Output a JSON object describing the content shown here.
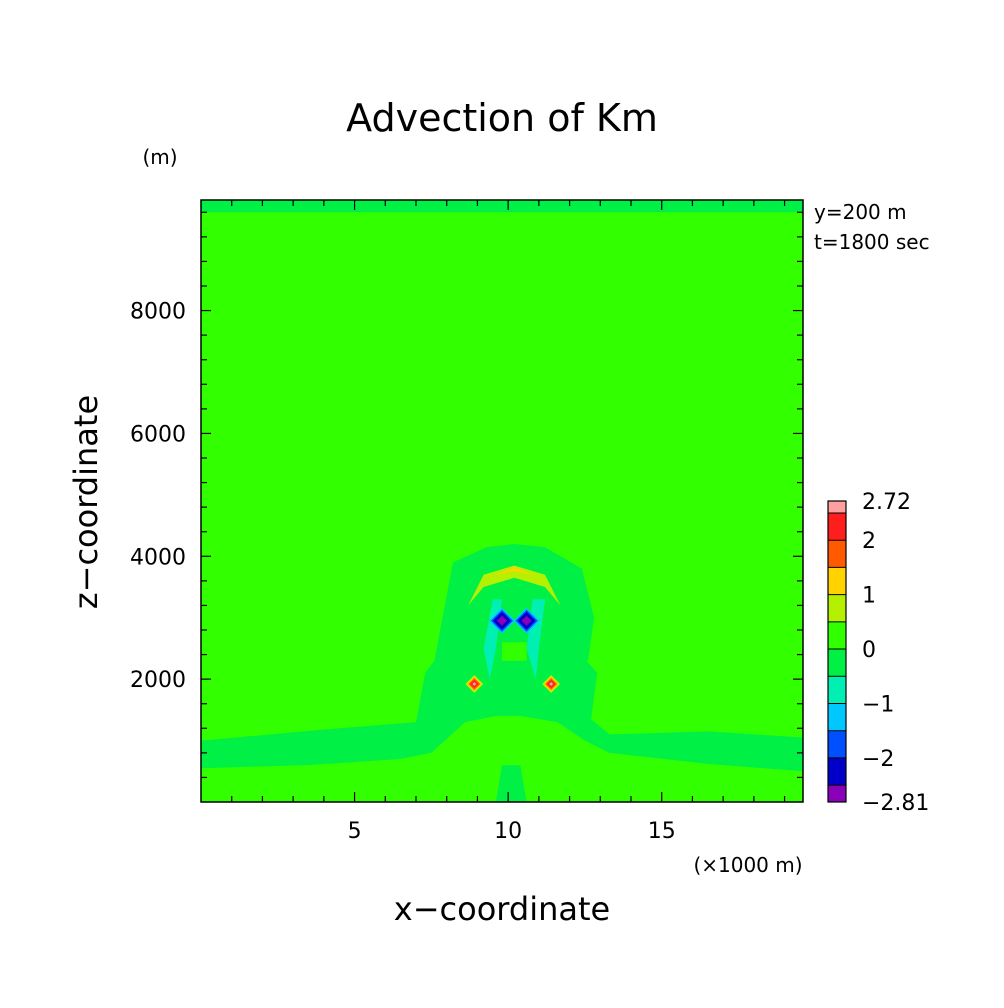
{
  "chart_data": {
    "type": "heatmap",
    "title": "Advection of Km",
    "xlabel": "x−coordinate",
    "ylabel": "z−coordinate",
    "x_unit": "(×1000 m)",
    "y_unit": "(m)",
    "xlim": [
      0,
      19.6
    ],
    "ylim": [
      0,
      9800
    ],
    "x_ticks": [
      5,
      10,
      15
    ],
    "x_tick_labels": [
      "5",
      "10",
      "15"
    ],
    "y_ticks": [
      2000,
      4000,
      6000,
      8000
    ],
    "y_tick_labels": [
      "2000",
      "4000",
      "6000",
      "8000"
    ],
    "annotations": [
      "y=200 m",
      "t=1800 sec"
    ],
    "colorbar": {
      "min": -2.81,
      "max": 2.72,
      "labels": [
        "2.72",
        "2",
        "1",
        "0",
        "−1",
        "−2",
        "−2.81"
      ],
      "label_values": [
        2.72,
        2,
        1,
        0,
        -1,
        -2,
        -2.81
      ],
      "levels": [
        {
          "from": -2.81,
          "to": -2.5,
          "color": "#8a00b8"
        },
        {
          "from": -2.5,
          "to": -2.0,
          "color": "#0000c8"
        },
        {
          "from": -2.0,
          "to": -1.5,
          "color": "#0050ff"
        },
        {
          "from": -1.5,
          "to": -1.0,
          "color": "#00c8ff"
        },
        {
          "from": -1.0,
          "to": -0.5,
          "color": "#00f0b4"
        },
        {
          "from": -0.5,
          "to": 0.0,
          "color": "#00f046"
        },
        {
          "from": 0.0,
          "to": 0.5,
          "color": "#32ff00"
        },
        {
          "from": 0.5,
          "to": 1.0,
          "color": "#b4f000"
        },
        {
          "from": 1.0,
          "to": 1.5,
          "color": "#ffd200"
        },
        {
          "from": 1.5,
          "to": 2.0,
          "color": "#ff5a00"
        },
        {
          "from": 2.0,
          "to": 2.5,
          "color": "#ff1e1e"
        },
        {
          "from": 2.5,
          "to": 2.72,
          "color": "#ffa0a0"
        }
      ]
    },
    "background_value": 0.2,
    "features": [
      {
        "name": "top-band",
        "value": -0.2,
        "x": [
          0,
          19.6,
          19.6,
          0
        ],
        "z": [
          9600,
          9600,
          9800,
          9800
        ]
      },
      {
        "name": "lower-plume",
        "value": -0.2,
        "x": [
          0,
          3.5,
          6.5,
          7.5,
          8.6,
          9.6,
          10.4,
          11.6,
          12.5,
          13.3,
          16.5,
          19.6,
          19.6,
          16.5,
          13.3,
          12.7,
          12.9,
          12.2,
          11.2,
          10.9,
          9.4,
          9.1,
          7.9,
          7.3,
          7.0,
          4.0,
          0
        ],
        "z": [
          550,
          600,
          700,
          800,
          1300,
          1400,
          1400,
          1300,
          1000,
          800,
          620,
          500,
          1050,
          1150,
          1100,
          1350,
          2100,
          2500,
          2750,
          3300,
          3300,
          2750,
          2500,
          2100,
          1300,
          1180,
          1000
        ]
      },
      {
        "name": "upper-cap",
        "value": -0.2,
        "x": [
          7.6,
          8.2,
          9.3,
          10.2,
          11.2,
          12.4,
          12.8,
          12.6,
          11.2,
          10.2,
          9.1,
          7.8
        ],
        "z": [
          2300,
          3900,
          4150,
          4200,
          4150,
          3800,
          3000,
          2300,
          2400,
          2300,
          2400,
          2300
        ]
      },
      {
        "name": "warm-arc",
        "value": 0.75,
        "x": [
          8.7,
          9.2,
          10.2,
          11.2,
          11.7,
          11.2,
          10.2,
          9.2
        ],
        "z": [
          3200,
          3700,
          3850,
          3700,
          3200,
          3500,
          3650,
          3500
        ]
      },
      {
        "name": "warm-arc-core",
        "value": 1.2,
        "x": [
          9.5,
          10.2,
          10.9,
          10.6,
          10.2,
          9.8
        ],
        "z": [
          3680,
          3820,
          3680,
          3720,
          3760,
          3720
        ]
      },
      {
        "name": "cool-tongue-left",
        "value": -0.8,
        "x": [
          9.2,
          9.5,
          9.8,
          9.6,
          9.4
        ],
        "z": [
          2500,
          3300,
          3300,
          2500,
          2000
        ]
      },
      {
        "name": "cool-tongue-right",
        "value": -0.8,
        "x": [
          10.6,
          10.8,
          11.2,
          11.0,
          10.9
        ],
        "z": [
          2500,
          3300,
          3300,
          2500,
          2000
        ]
      },
      {
        "name": "small-pos-center",
        "value": 0.3,
        "x": [
          9.8,
          10.6,
          10.6,
          9.8
        ],
        "z": [
          2300,
          2300,
          2600,
          2600
        ]
      },
      {
        "name": "bottom-neck",
        "value": -0.4,
        "x": [
          9.6,
          10.6,
          10.4,
          9.8
        ],
        "z": [
          0,
          0,
          600,
          600
        ]
      }
    ],
    "extrema": [
      {
        "x": 9.8,
        "z": 2950,
        "value": -2.81
      },
      {
        "x": 10.6,
        "z": 2950,
        "value": -2.7
      },
      {
        "x": 8.9,
        "z": 1920,
        "value": 2.72
      },
      {
        "x": 11.4,
        "z": 1920,
        "value": 2.6
      }
    ]
  }
}
